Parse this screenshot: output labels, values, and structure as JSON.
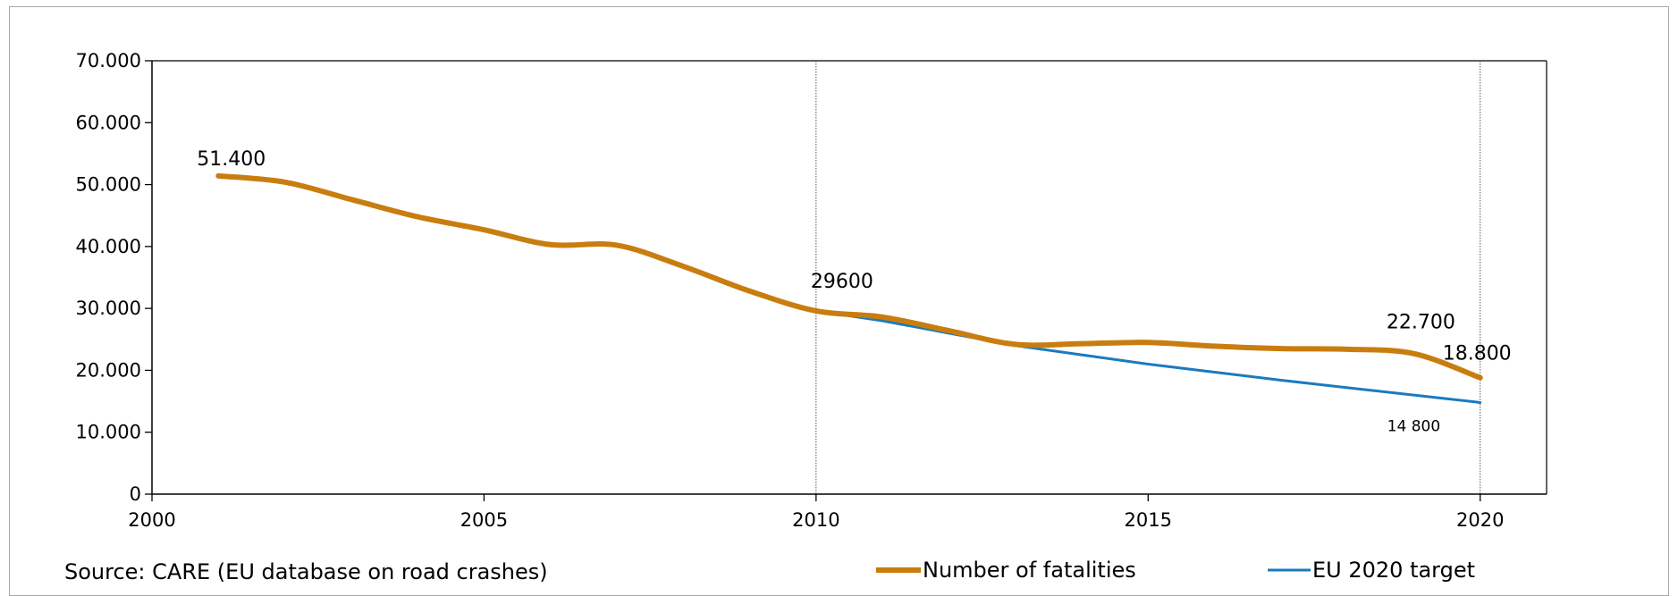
{
  "chart_data": {
    "type": "line",
    "title": "",
    "xlabel": "",
    "ylabel": "",
    "xlim": [
      2000,
      2021
    ],
    "ylim": [
      0,
      70000
    ],
    "x_ticks": [
      2000,
      2005,
      2010,
      2015,
      2020
    ],
    "x_tick_labels": [
      "2000",
      "2005",
      "2010",
      "2015",
      "2020"
    ],
    "y_ticks": [
      0,
      10000,
      20000,
      30000,
      40000,
      50000,
      60000,
      70000
    ],
    "y_tick_labels": [
      "0",
      "10.000",
      "20.000",
      "30.000",
      "40.000",
      "50.000",
      "60.000",
      "70.000"
    ],
    "reference_lines_x": [
      2010,
      2020
    ],
    "grid": false,
    "legend_position": "bottom",
    "series": [
      {
        "name": "Number of fatalities",
        "color": "#c97d0f",
        "x": [
          2001,
          2002,
          2003,
          2004,
          2005,
          2006,
          2007,
          2008,
          2009,
          2010,
          2011,
          2012,
          2013,
          2014,
          2015,
          2016,
          2017,
          2018,
          2019,
          2020
        ],
        "values": [
          51400,
          50400,
          47600,
          44800,
          42700,
          40300,
          40200,
          36800,
          32800,
          29600,
          28600,
          26400,
          24200,
          24300,
          24500,
          23900,
          23500,
          23400,
          22700,
          18800
        ]
      },
      {
        "name": "EU 2020 target",
        "color": "#1a7abf",
        "x": [
          2010,
          2011,
          2012,
          2013,
          2014,
          2015,
          2016,
          2017,
          2018,
          2019,
          2020
        ],
        "values": [
          29600,
          28000,
          26000,
          24000,
          22500,
          21000,
          19700,
          18400,
          17200,
          16000,
          14800
        ]
      }
    ],
    "data_labels": [
      {
        "series": 0,
        "x": 2001,
        "y": 51400,
        "text": "51.400",
        "size": "large"
      },
      {
        "series": 0,
        "x": 2010,
        "y": 29600,
        "text": "29600",
        "size": "large"
      },
      {
        "series": 0,
        "x": 2019,
        "y": 22700,
        "text": "22.700",
        "size": "large"
      },
      {
        "series": 0,
        "x": 2020,
        "y": 18800,
        "text": "18.800",
        "size": "large"
      },
      {
        "series": 1,
        "x": 2020,
        "y": 14800,
        "text": "14 800",
        "size": "small"
      }
    ]
  },
  "source_text": "Source: CARE (EU database on road crashes)"
}
